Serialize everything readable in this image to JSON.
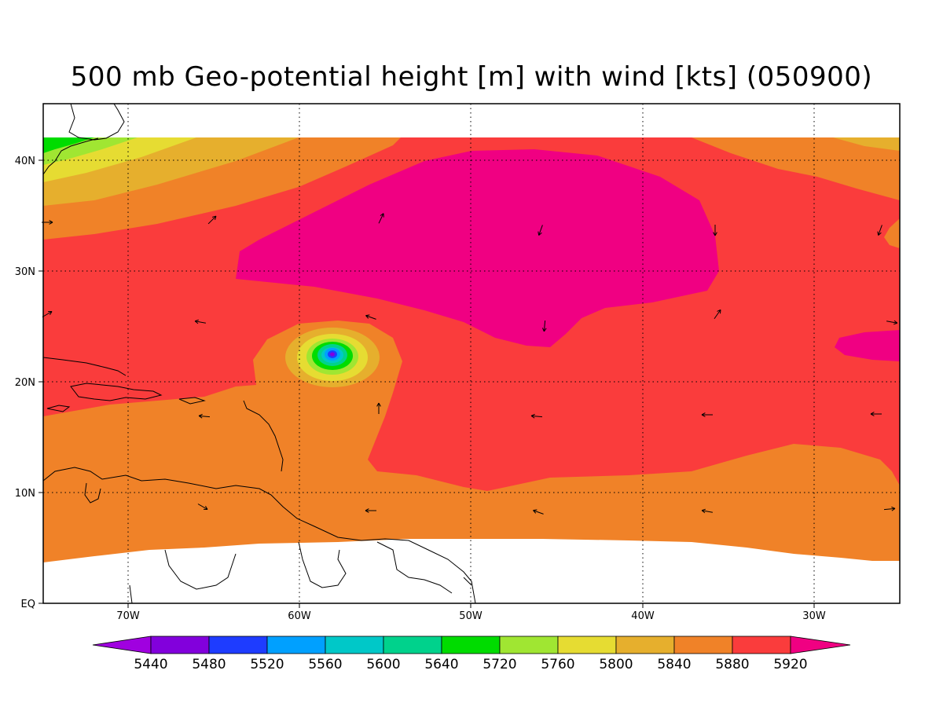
{
  "title": "500 mb Geo-potential height [m] with wind [kts] (050900)",
  "axes": {
    "lon_labels": [
      "70W",
      "60W",
      "50W",
      "40W",
      "30W"
    ],
    "lat_labels": [
      "EQ",
      "10N",
      "20N",
      "30N",
      "40N"
    ]
  },
  "colorbar": {
    "levels": [
      "5440",
      "5480",
      "5520",
      "5560",
      "5600",
      "5640",
      "5720",
      "5760",
      "5800",
      "5840",
      "5880",
      "5920"
    ],
    "colors": [
      "#a000e0",
      "#8200dc",
      "#1e3cff",
      "#00a0ff",
      "#00c8c8",
      "#00d28c",
      "#00dc00",
      "#a0e632",
      "#e6dc32",
      "#e6af2d",
      "#f08228",
      "#fa3c3c",
      "#f00082"
    ]
  },
  "fill_colors": {
    "land_missing": "#ffffff",
    "high_5920": "#f00082",
    "band_5880": "#fa3c3c",
    "band_5840": "#f08228",
    "band_5800": "#e6af2d",
    "band_5760": "#e6dc32",
    "band_5720": "#a0e632",
    "band_5640": "#00dc00",
    "band_5560": "#00c8c8",
    "band_5520": "#00a0ff",
    "band_5480": "#1e3cff",
    "low_core": "#8200dc"
  }
}
